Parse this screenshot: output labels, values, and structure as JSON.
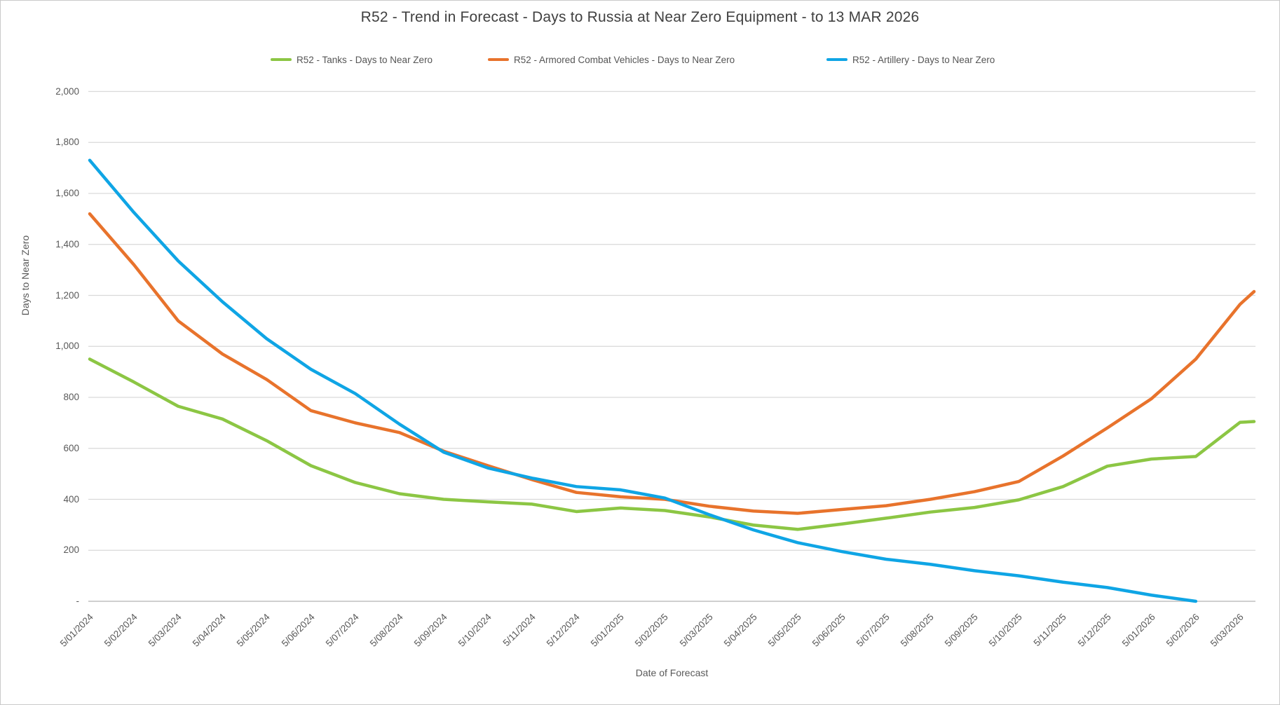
{
  "title": "R52 - Trend in Forecast - Days to Russia at Near Zero Equipment - to 13 MAR 2026",
  "colors": {
    "background": "#ffffff",
    "frame_border": "#c9c9c9",
    "gridline": "#d9d9d9",
    "axis_line": "#bfbfbf",
    "title_text": "#404040",
    "axis_text": "#595959",
    "tanks_green": "#8CC644",
    "acv_orange": "#E8732C",
    "artillery_blue": "#0FA5E5"
  },
  "chart_data": {
    "type": "line",
    "title": "R52 - Trend in Forecast - Days to Russia at Near Zero Equipment - to 13 MAR 2026",
    "xlabel": "Date of Forecast",
    "ylabel": "Days to Near Zero",
    "ylim": [
      0,
      2000
    ],
    "y_tick_step": 200,
    "y_tick_labels": [
      "-",
      "200",
      "400",
      "600",
      "800",
      "1,000",
      "1,200",
      "1,400",
      "1,600",
      "1,800",
      "2,000"
    ],
    "grid": "horizontal only",
    "legend_position": "top",
    "categories": [
      "5/01/2024",
      "5/02/2024",
      "5/03/2024",
      "5/04/2024",
      "5/05/2024",
      "5/06/2024",
      "5/07/2024",
      "5/08/2024",
      "5/09/2024",
      "5/10/2024",
      "5/11/2024",
      "5/12/2024",
      "5/01/2025",
      "5/02/2025",
      "5/03/2025",
      "5/04/2025",
      "5/05/2025",
      "5/06/2025",
      "5/07/2025",
      "5/08/2025",
      "5/09/2025",
      "5/10/2025",
      "5/11/2025",
      "5/12/2025",
      "5/01/2026",
      "5/02/2026",
      "5/03/2026"
    ],
    "final_point_date": "13 MAR 2026",
    "series": [
      {
        "name": "R52 - Tanks - Days to Near Zero",
        "color": "#8CC644",
        "values": [
          950,
          860,
          765,
          715,
          630,
          532,
          466,
          422,
          400,
          390,
          381,
          352,
          366,
          356,
          331,
          299,
          282,
          303,
          326,
          350,
          368,
          398,
          450,
          530,
          558,
          568,
          702
        ],
        "final_value": 705
      },
      {
        "name": "R52 - Armored Combat Vehicles - Days to Near Zero",
        "color": "#E8732C",
        "values": [
          1520,
          1320,
          1100,
          970,
          870,
          748,
          700,
          662,
          589,
          532,
          477,
          427,
          410,
          400,
          373,
          354,
          345,
          360,
          375,
          400,
          430,
          470,
          570,
          680,
          795,
          950,
          1165
        ],
        "final_value": 1215
      },
      {
        "name": "R52 - Artillery - Days to Near Zero",
        "color": "#0FA5E5",
        "values": [
          1730,
          1525,
          1335,
          1175,
          1030,
          910,
          815,
          695,
          585,
          523,
          483,
          450,
          437,
          405,
          340,
          280,
          230,
          195,
          165,
          145,
          120,
          100,
          75,
          54,
          24,
          0,
          null
        ],
        "final_value": null
      }
    ]
  }
}
